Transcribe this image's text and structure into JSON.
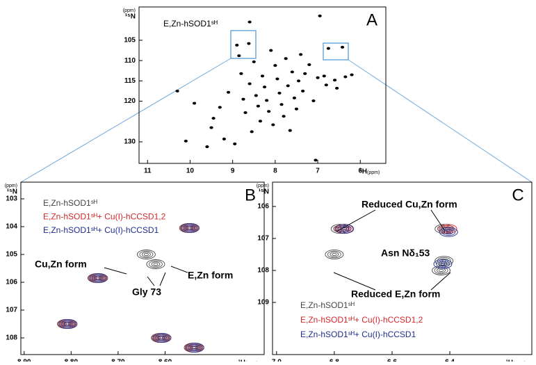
{
  "chart_data": [
    {
      "type": "contour",
      "panel_label": "A",
      "x_label": "¹H",
      "x_unit": "(ppm)",
      "y_label": "¹⁵N",
      "y_unit": "(ppm)",
      "xlim": [
        11.2,
        5.4
      ],
      "ylim": [
        135.3,
        96.8
      ],
      "xticks": [
        11,
        10,
        9,
        8,
        7,
        6
      ],
      "yticks": [
        105,
        110,
        115,
        120,
        130
      ],
      "series": [
        {
          "name": "E,Zn-hSOD1ˢᴴ",
          "color": "#000000",
          "x": [
            10.3,
            10.1,
            9.9,
            9.6,
            9.5,
            9.45,
            9.3,
            9.2,
            9.1,
            8.95,
            8.9,
            8.85,
            8.8,
            8.75,
            8.7,
            8.62,
            8.6,
            8.55,
            8.5,
            8.45,
            8.4,
            8.35,
            8.3,
            8.25,
            8.2,
            8.15,
            8.1,
            8.05,
            8.0,
            7.95,
            7.9,
            7.85,
            7.8,
            7.75,
            7.7,
            7.65,
            7.6,
            7.55,
            7.5,
            7.45,
            7.4,
            7.35,
            7.3,
            7.2,
            7.1,
            7.0,
            6.95,
            6.85,
            6.8,
            6.75,
            6.6,
            6.55,
            6.42,
            6.35,
            6.2,
            7.05,
            8.6
          ],
          "values": [
            117.5,
            129.8,
            120.5,
            131.2,
            126.5,
            124.2,
            121.5,
            129.3,
            117.8,
            130.5,
            106.2,
            108.8,
            113.2,
            119.5,
            122.8,
            105.8,
            115.7,
            127.5,
            110.3,
            118.6,
            121.2,
            124.9,
            113.8,
            116.5,
            119.8,
            122.5,
            107.5,
            125.8,
            111.2,
            114.5,
            118.0,
            120.8,
            123.7,
            109.5,
            116.2,
            127.2,
            112.8,
            119.2,
            121.9,
            115.0,
            108.5,
            117.5,
            113.2,
            111.0,
            119.9,
            114.2,
            99.0,
            113.8,
            116.0,
            107.0,
            114.8,
            116.8,
            106.7,
            114.0,
            113.5,
            134.5,
            100.5
          ]
        }
      ]
    },
    {
      "type": "contour",
      "panel_label": "B",
      "x_label": "¹H",
      "x_unit": "(ppm)",
      "y_label": "¹⁵N",
      "y_unit": "(ppm)",
      "xlim": [
        8.907,
        8.389
      ],
      "ylim": [
        108.6,
        102.4
      ],
      "xticks": [
        {
          "value": 8.9,
          "label": "8.90"
        },
        {
          "value": 8.8,
          "label": "8.80"
        },
        {
          "value": 8.7,
          "label": "8.70"
        },
        {
          "value": 8.6,
          "label": "8.60"
        }
      ],
      "yticks": [
        103,
        104,
        105,
        106,
        107,
        108
      ],
      "series": [
        {
          "name": "E,Zn-hSOD1ˢᴴ",
          "color": "#444444",
          "x": [
            8.55,
            8.64,
            8.62,
            8.745,
            8.81,
            8.61,
            8.54
          ],
          "values": [
            104.05,
            105.0,
            105.35,
            105.85,
            107.5,
            108.0,
            108.35
          ]
        },
        {
          "name": "E,Zn-hSOD1ˢᴴ+ Cu(I)-hCCSD1,2",
          "color": "#d0282d",
          "x": [
            8.55,
            8.745,
            8.81,
            8.61,
            8.54
          ],
          "values": [
            104.05,
            105.85,
            107.5,
            108.0,
            108.35
          ]
        },
        {
          "name": "E,Zn-hSOD1ˢᴴ+ Cu(I)-hCCSD1",
          "color": "#1f2d8c",
          "x": [
            8.55,
            8.745,
            8.81,
            8.61,
            8.54
          ],
          "values": [
            104.05,
            105.85,
            107.5,
            108.0,
            108.35
          ]
        }
      ],
      "annotations": [
        "Cu,Zn form",
        "Gly 73",
        "E,Zn form"
      ]
    },
    {
      "type": "contour",
      "panel_label": "C",
      "x_label": "¹H",
      "x_unit": "(ppm)",
      "y_label": "¹⁵N",
      "y_unit": "(ppm)",
      "xlim": [
        7.014,
        6.116
      ],
      "ylim": [
        110.63,
        105.24
      ],
      "xticks": [
        {
          "value": 7,
          "label": "7.0"
        },
        6.8,
        6.6,
        6.4
      ],
      "yticks": [
        106,
        107,
        108,
        109
      ],
      "series": [
        {
          "name": "E,Zn-hSOD1ˢᴴ",
          "color": "#444444",
          "x": [
            6.78,
            6.42,
            6.8,
            6.42,
            6.43
          ],
          "values": [
            106.7,
            106.7,
            107.5,
            107.7,
            108.0
          ]
        },
        {
          "name": "E,Zn-hSOD1ˢᴴ+ Cu(I)-hCCSD1,2",
          "color": "#d0282d",
          "x": [
            6.77,
            6.41
          ],
          "values": [
            106.7,
            106.7
          ]
        },
        {
          "name": "E,Zn-hSOD1ˢᴴ+ Cu(I)-hCCSD1",
          "color": "#1f2d8c",
          "x": [
            6.77,
            6.41,
            6.43
          ],
          "values": [
            106.7,
            106.8,
            107.8
          ]
        }
      ],
      "annotations": [
        "Reduced Cu,Zn form",
        "Asn Nδ₁53",
        "Reduced E,Zn form"
      ]
    }
  ]
}
